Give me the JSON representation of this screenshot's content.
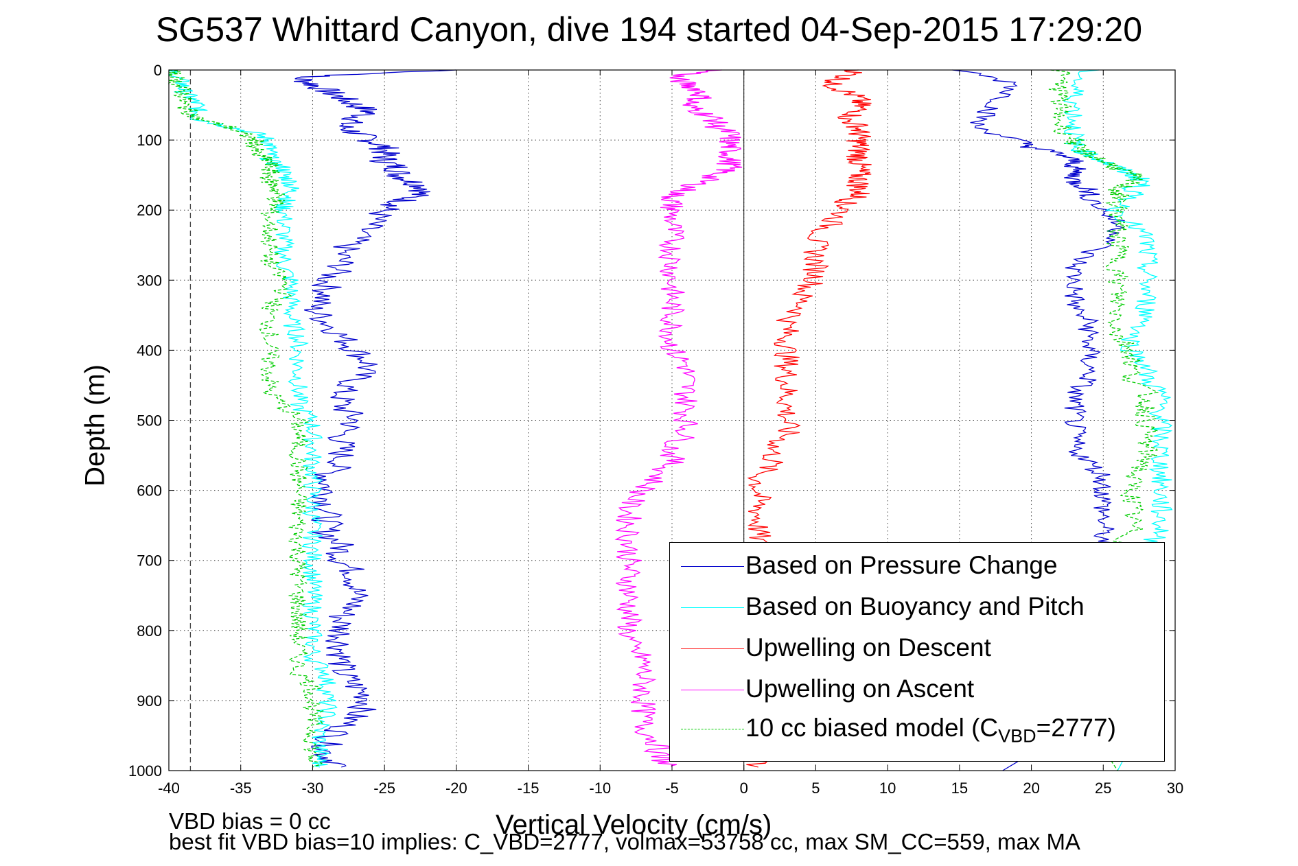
{
  "chart_data": {
    "type": "line",
    "title": "SG537 Whittard Canyon, dive 194 started 04-Sep-2015 17:29:20",
    "xlabel": "Vertical Velocity (cm/s)",
    "ylabel": "Depth (m)",
    "xlim": [
      -40,
      30
    ],
    "ylim": [
      0,
      1000
    ],
    "y_reversed": true,
    "grid": true,
    "legend_position": "lower-right",
    "x_ticks": [
      "-40",
      "-35",
      "-30",
      "-25",
      "-20",
      "-15",
      "-10",
      "-5",
      "0",
      "5",
      "10",
      "15",
      "20",
      "25",
      "30"
    ],
    "y_ticks": [
      "0",
      "100",
      "200",
      "300",
      "400",
      "500",
      "600",
      "700",
      "800",
      "900",
      "1000"
    ],
    "reference_lines": {
      "vertical_solid_x": 0,
      "vertical_dashed_x": -38.5
    },
    "depth": [
      0,
      10,
      20,
      30,
      40,
      50,
      60,
      70,
      80,
      90,
      100,
      110,
      120,
      130,
      140,
      150,
      160,
      170,
      180,
      190,
      200,
      220,
      240,
      260,
      280,
      300,
      320,
      340,
      360,
      380,
      400,
      420,
      440,
      460,
      480,
      500,
      520,
      540,
      560,
      580,
      600,
      620,
      640,
      660,
      680,
      700,
      720,
      740,
      760,
      780,
      800,
      820,
      840,
      860,
      880,
      900,
      920,
      940,
      960,
      980,
      995
    ],
    "series": [
      {
        "name": "Based on Pressure Change",
        "color": "#0000cc",
        "x": [
          -20,
          -31,
          -30,
          -29,
          -28,
          -27,
          -26,
          -27,
          -28,
          -27,
          -26,
          -25,
          -25,
          -25,
          -24,
          -24,
          -23,
          -22,
          -23,
          -24,
          -25,
          -26,
          -27,
          -28,
          -28,
          -29,
          -29,
          -30,
          -29,
          -28,
          -27,
          -26,
          -27,
          -28,
          -28,
          -27,
          -28,
          -28,
          -28,
          -29,
          -29,
          -29,
          -29,
          -29,
          -28,
          -28,
          -27,
          -27,
          -27,
          -28,
          -28,
          -28,
          -28,
          -28,
          -27,
          -26,
          -27,
          -28,
          -29,
          -29,
          -28
        ]
      },
      {
        "name": "Based on Buoyancy and Pitch",
        "color": "#00ffff",
        "x": [
          -40,
          -39.5,
          -39,
          -39,
          -38.5,
          -38,
          -38,
          -38,
          -36,
          -34,
          -33,
          -33,
          -33,
          -33,
          -32,
          -32,
          -31.5,
          -31.5,
          -31.5,
          -32,
          -32,
          -32,
          -32,
          -32,
          -32,
          -31.5,
          -31.5,
          -31.5,
          -31.5,
          -31,
          -31,
          -31,
          -31,
          -31,
          -31,
          -30,
          -30,
          -30,
          -30,
          -30,
          -30,
          -30,
          -30,
          -30,
          -30,
          -30,
          -30,
          -30,
          -30,
          -30,
          -30,
          -30,
          -30,
          -29,
          -29,
          -29,
          -29,
          -29.5,
          -29.5,
          -29.5,
          -29.5
        ]
      },
      {
        "name": "Upwelling on Descent",
        "color": "#ff0000",
        "x": [
          8,
          7,
          6,
          7,
          8,
          8,
          8,
          7,
          8,
          8,
          8,
          8,
          8,
          8,
          8,
          8,
          8,
          8,
          8,
          7,
          7,
          6,
          5,
          5,
          5,
          5,
          4,
          4,
          3,
          3,
          3,
          3,
          3,
          3,
          3,
          3,
          3,
          2,
          2,
          1,
          1,
          1,
          1,
          1,
          1,
          1,
          1,
          1,
          1,
          1,
          1,
          1,
          1,
          1,
          1,
          1,
          1,
          1,
          1,
          1,
          1
        ]
      },
      {
        "name": "Upwelling on Ascent",
        "color": "#ff00ff",
        "x": [
          -2,
          -5,
          -4,
          -3,
          -3,
          -4,
          -3,
          -2,
          -2,
          -1,
          -1,
          -1,
          -1,
          -1,
          -1,
          -2,
          -3,
          -4,
          -5,
          -5,
          -5,
          -5,
          -5,
          -5,
          -5,
          -5,
          -5,
          -5,
          -5,
          -5,
          -5,
          -4,
          -4,
          -4,
          -4,
          -4,
          -4,
          -5,
          -5,
          -6,
          -7,
          -8,
          -8,
          -8,
          -8,
          -8,
          -8,
          -8,
          -8,
          -8,
          -8,
          -8,
          -7,
          -7,
          -7,
          -7,
          -7,
          -7,
          -6,
          -6,
          -5
        ]
      },
      {
        "name": "10 cc biased model (C_VBD=2777)",
        "color": "#00cc00",
        "dashed": true,
        "x": [
          -40,
          -39.5,
          -39.5,
          -39,
          -39,
          -39,
          -38.5,
          -38,
          -36,
          -35,
          -34,
          -34,
          -34,
          -33,
          -33,
          -33,
          -33,
          -32.5,
          -32.5,
          -32.5,
          -33,
          -33,
          -33,
          -33,
          -33,
          -32,
          -32,
          -33,
          -33,
          -33,
          -33,
          -33,
          -33,
          -33,
          -32,
          -31,
          -31,
          -31,
          -31,
          -31,
          -31,
          -31,
          -31,
          -31,
          -31,
          -31,
          -31,
          -31,
          -31,
          -31,
          -31,
          -31,
          -31,
          -31,
          -30,
          -30,
          -30,
          -30,
          -30,
          -30,
          -30
        ]
      }
    ],
    "ascent_series": [
      {
        "name": "Based on Pressure Change",
        "x": [
          15,
          19,
          18,
          17,
          16,
          19,
          20,
          22,
          23,
          23,
          23,
          23,
          24,
          24,
          25,
          26,
          26,
          24,
          23,
          23,
          23,
          23,
          24,
          24,
          24,
          24,
          24,
          23,
          23,
          23,
          23,
          23,
          24,
          25,
          25,
          25,
          25,
          25,
          25,
          24,
          24,
          24,
          22,
          20,
          18
        ]
      },
      {
        "name": "Based on Buoyancy and Pitch",
        "x": [
          24,
          23,
          23,
          23,
          23,
          23,
          23,
          24,
          25,
          26,
          27,
          28,
          27,
          27,
          26,
          27,
          28,
          28,
          28,
          28,
          28,
          28,
          28,
          27,
          27,
          28,
          28,
          29,
          29,
          29,
          29,
          29,
          29,
          29,
          29,
          29,
          29,
          29,
          28,
          28,
          28,
          28,
          27,
          27,
          26
        ]
      },
      {
        "name": "10 cc biased model (C_VBD=2777)",
        "x": [
          22,
          22,
          22,
          22,
          22,
          23,
          23,
          24,
          25,
          26,
          27,
          27,
          26,
          26,
          26,
          26,
          26,
          26,
          26,
          26,
          26,
          26,
          26,
          26,
          27,
          27,
          27,
          28,
          28,
          28,
          28,
          28,
          28,
          27,
          27,
          27,
          27,
          27,
          26,
          26,
          26,
          26,
          25,
          25,
          26
        ]
      }
    ],
    "ascent_depth": [
      0,
      20,
      40,
      60,
      80,
      100,
      110,
      120,
      130,
      140,
      150,
      160,
      170,
      180,
      200,
      220,
      240,
      260,
      280,
      300,
      320,
      340,
      360,
      380,
      400,
      420,
      440,
      460,
      480,
      500,
      520,
      540,
      560,
      580,
      600,
      620,
      640,
      660,
      680,
      700,
      720,
      760,
      800,
      900,
      1000
    ],
    "legend": [
      {
        "text": "Based on Pressure Change",
        "color": "#0000cc"
      },
      {
        "text": "Based on Buoyancy and Pitch",
        "color": "#00ffff"
      },
      {
        "text": "Upwelling on Descent",
        "color": "#ff0000"
      },
      {
        "text": "Upwelling on Ascent",
        "color": "#ff00ff"
      },
      {
        "text_main": "10 cc biased model (C",
        "text_sub": "VBD",
        "text_end": "=2777)",
        "color": "#00cc00"
      }
    ],
    "footnotes": [
      "VBD bias = 0 cc",
      "best fit VBD bias=10 implies: C_VBD=2777, volmax=53758 cc, max SM_CC=559, max MA"
    ]
  }
}
